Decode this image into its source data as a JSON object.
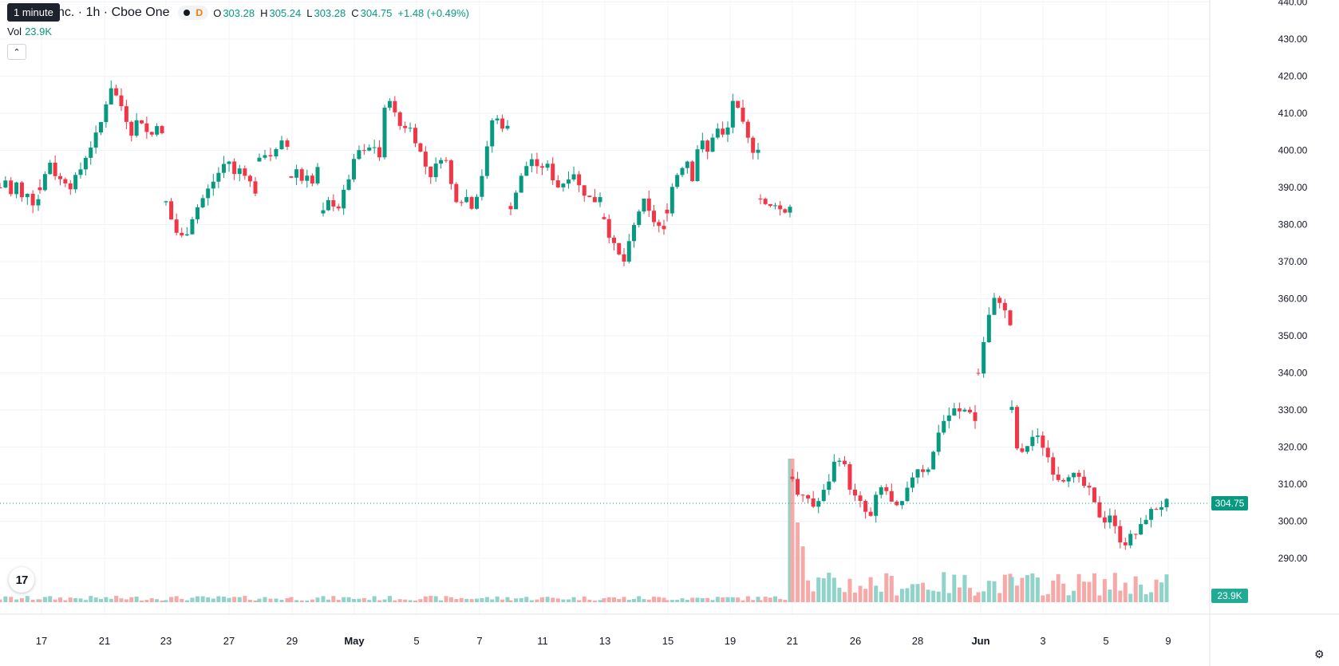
{
  "header": {
    "symbol": "nc. · 1h · Cboe One",
    "interval_tooltip": "1 minute",
    "dot_label": "D",
    "ohlc": {
      "o_label": "O",
      "o": "303.28",
      "h_label": "H",
      "h": "305.24",
      "l_label": "L",
      "l": "303.28",
      "c_label": "C",
      "c": "304.75",
      "change": "+1.48 (+0.49%)"
    },
    "vol_label": "Vol",
    "vol_value": "23.9K",
    "collapse_icon": "chevron-up-icon"
  },
  "footer": {
    "logo_text": "17",
    "settings_icon": "gear-icon"
  },
  "colors": {
    "up": "#089981",
    "down": "#f23645",
    "up_volume": "#8fd3c9",
    "down_volume": "#f7a9a7",
    "grid": "#f0f3fa"
  },
  "chart_data": {
    "type": "candlestick",
    "y_axis": {
      "ticks": [
        "290.00",
        "300.00",
        "310.00",
        "320.00",
        "330.00",
        "340.00",
        "350.00",
        "360.00",
        "370.00",
        "380.00",
        "390.00",
        "400.00",
        "410.00",
        "420.00",
        "430.00",
        "440.00"
      ],
      "range": [
        287,
        440
      ]
    },
    "x_axis": {
      "tick_labels": [
        "17",
        "21",
        "23",
        "27",
        "29",
        "May",
        "5",
        "7",
        "11",
        "13",
        "15",
        "19",
        "21",
        "26",
        "28",
        "Jun",
        "3",
        "5",
        "9"
      ]
    },
    "last_price_label": "304.75",
    "last_volume_label": "23.9K",
    "grid": true,
    "price_segments": [
      {
        "x_start": 0,
        "x_end": 48,
        "points": [
          390,
          392,
          388,
          391,
          387,
          389,
          386,
          387
        ]
      },
      {
        "x_start": 50,
        "x_end": 203,
        "points": [
          390,
          394,
          398,
          391,
          393,
          390,
          392,
          395,
          399,
          402,
          405,
          410,
          418,
          415,
          412,
          408,
          404,
          410,
          406,
          403,
          408,
          404
        ]
      },
      {
        "x_start": 208,
        "x_end": 320,
        "points": [
          386,
          380,
          376,
          378,
          383,
          386,
          389,
          392,
          395,
          398,
          393,
          396,
          392,
          389
        ]
      },
      {
        "x_start": 325,
        "x_end": 360,
        "points": [
          397,
          400,
          398,
          402,
          401
        ]
      },
      {
        "x_start": 365,
        "x_end": 398,
        "points": [
          393,
          395,
          392,
          394,
          391,
          395
        ]
      },
      {
        "x_start": 405,
        "x_end": 636,
        "points": [
          383,
          387,
          384,
          389,
          395,
          400,
          399,
          402,
          398,
          417,
          410,
          406,
          407,
          403,
          398,
          393,
          396,
          400,
          391,
          386,
          388,
          385,
          390,
          399,
          410,
          407,
          406
        ]
      },
      {
        "x_start": 640,
        "x_end": 752,
        "points": [
          385,
          390,
          395,
          398,
          394,
          397,
          393,
          390,
          392,
          395,
          390,
          388,
          386,
          388
        ]
      },
      {
        "x_start": 757,
        "x_end": 832,
        "points": [
          382,
          376,
          372,
          370,
          376,
          383,
          386,
          382,
          380,
          378
        ]
      },
      {
        "x_start": 836,
        "x_end": 950,
        "points": [
          384,
          392,
          395,
          398,
          392,
          405,
          398,
          404,
          406,
          402,
          414,
          410,
          405,
          400,
          401
        ]
      },
      {
        "x_start": 953,
        "x_end": 990,
        "points": [
          387,
          384,
          386,
          383,
          385
        ]
      },
      {
        "x_start": 993,
        "x_end": 1222,
        "points": [
          312,
          305,
          307,
          304,
          306,
          310,
          316,
          318,
          310,
          306,
          304,
          300,
          307,
          310,
          305,
          303,
          306,
          312,
          315,
          313,
          318,
          326,
          328,
          330,
          329,
          331,
          327
        ]
      },
      {
        "x_start": 1226,
        "x_end": 1266,
        "points": [
          340,
          350,
          358,
          361,
          357,
          353
        ]
      },
      {
        "x_start": 1268,
        "x_end": 1462,
        "points": [
          330,
          316,
          320,
          323,
          322,
          318,
          313,
          311,
          313,
          312,
          310,
          308,
          303,
          300,
          302,
          296,
          294,
          296,
          297,
          301,
          303,
          304,
          305
        ]
      }
    ],
    "volume_profile": "low everywhere (~0.5K-3K) with spikes near 21 (up to ~23K) and moderate volumes (5K-10K) from 21 onward"
  }
}
